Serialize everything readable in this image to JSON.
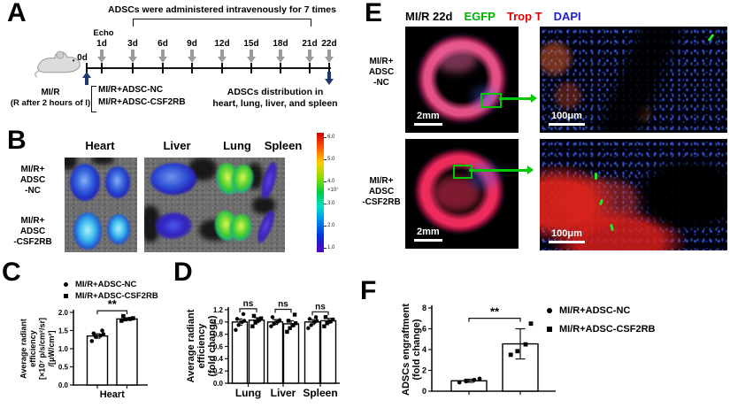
{
  "figure": {
    "panelA": {
      "letter": "A",
      "title": "ADSCs were administered intravenously for 7 times",
      "echo": "Echo",
      "day_zero": "0d",
      "days": [
        "1d",
        "3d",
        "6d",
        "9d",
        "12d",
        "15d",
        "18d",
        "21d",
        "22d"
      ],
      "mir_line1": "MI/R",
      "mir_line2": "(R after 2 hours of I)",
      "groups": [
        "MI/R+ADSC-NC",
        "MI/R+ADSC-CSF2RB"
      ],
      "outcome_line1": "ADSCs distribution in",
      "outcome_line2": "heart, lung, liver, and spleen"
    },
    "panelB": {
      "letter": "B",
      "organ_labels": [
        "Heart",
        "Liver",
        "Lung",
        "Spleen"
      ],
      "row1_label": [
        "MI/R+",
        "ADSC",
        "-NC"
      ],
      "row2_label": [
        "MI/R+",
        "ADSC",
        "-CSF2RB"
      ],
      "colorbar": {
        "ticks": [
          "6.0",
          "5.0",
          "4.0",
          "3.0",
          "2.0",
          "1.0"
        ],
        "unit": "×10⁷"
      }
    },
    "panelC": {
      "letter": "C"
    },
    "panelD": {
      "letter": "D"
    },
    "panelE": {
      "letter": "E",
      "title_parts": [
        {
          "text": "MI/R 22d",
          "color": "#000000"
        },
        {
          "text": "EGFP",
          "color": "#00b000"
        },
        {
          "text": "Trop T",
          "color": "#e80000"
        },
        {
          "text": "DAPI",
          "color": "#2020cc"
        }
      ],
      "row1_label": [
        "MI/R+",
        "ADSC",
        "-NC"
      ],
      "row2_label": [
        "MI/R+",
        "ADSC",
        "-CSF2RB"
      ],
      "scalebar_heart": "2mm",
      "scalebar_zoom": "100μm"
    },
    "panelF": {
      "letter": "F"
    },
    "legend": {
      "nc": "MI/R+ADSC-NC",
      "csf": "MI/R+ADSC-CSF2RB"
    }
  },
  "chart_data": [
    {
      "id": "chartC",
      "type": "bar",
      "panel": "C",
      "title": "",
      "categories": [
        "Heart"
      ],
      "ylim": [
        0,
        2
      ],
      "yticks": {
        "values": [
          0,
          0.5,
          1,
          1.5,
          2
        ],
        "labels": [
          "0.0",
          "0.5",
          "1.0",
          "1.5",
          "2.0"
        ]
      },
      "ylabel_lines": [
        "Average radiant",
        "efficiency",
        "[×10⁷ p/s/cm²/sr]",
        "/[μW/cm²]"
      ],
      "series": [
        {
          "name": "MI/R+ADSC-NC",
          "marker": "circle",
          "values": [
            1.35
          ],
          "errors": [
            0.06
          ],
          "points": [
            [
              1.21,
              1.33,
              1.36,
              1.4,
              1.42,
              1.5
            ]
          ]
        },
        {
          "name": "MI/R+ADSC-CSF2RB",
          "marker": "square",
          "values": [
            1.82
          ],
          "errors": [
            0.03
          ],
          "points": [
            [
              1.77,
              1.81,
              1.82,
              1.84,
              1.9
            ]
          ]
        }
      ],
      "significance": [
        {
          "group": 0,
          "label": "**"
        }
      ],
      "legend_position": "above-left"
    },
    {
      "id": "chartD",
      "type": "bar",
      "panel": "D",
      "title": "",
      "categories": [
        "Lung",
        "Liver",
        "Spleen"
      ],
      "ylim": [
        0,
        1.2
      ],
      "yticks": {
        "values": [
          0,
          0.2,
          0.4,
          0.6,
          0.8,
          1,
          1.2
        ],
        "labels": [
          "0.0",
          "0.2",
          "0.4",
          "0.6",
          "0.8",
          "1.0",
          "1.2"
        ]
      },
      "ylabel_lines": [
        "Average radiant",
        "efficiency",
        "(fold change)"
      ],
      "series": [
        {
          "name": "MI/R+ADSC-NC",
          "marker": "circle",
          "values": [
            1,
            1,
            1
          ],
          "errors": [
            0.05,
            0.04,
            0.04
          ],
          "points": [
            [
              0.87,
              0.95,
              1,
              1.02,
              1.05,
              1.13
            ],
            [
              0.93,
              0.97,
              1,
              1.03,
              1.08
            ],
            [
              0.9,
              0.95,
              1,
              1.02,
              1.05,
              1.08
            ]
          ]
        },
        {
          "name": "MI/R+ADSC-CSF2RB",
          "marker": "square",
          "values": [
            1.03,
            0.97,
            1.02
          ],
          "errors": [
            0.04,
            0.05,
            0.04
          ],
          "points": [
            [
              0.93,
              0.99,
              1.03,
              1.06,
              1.1
            ],
            [
              0.84,
              0.9,
              0.95,
              0.98,
              1.02,
              1.12
            ],
            [
              0.93,
              0.98,
              1.01,
              1.04,
              1.08
            ]
          ]
        }
      ],
      "significance": [
        {
          "group": 0,
          "label": "ns"
        },
        {
          "group": 1,
          "label": "ns"
        },
        {
          "group": 2,
          "label": "ns"
        }
      ],
      "legend_position": "none"
    },
    {
      "id": "chartF",
      "type": "bar",
      "panel": "F",
      "title": "",
      "categories": [
        ""
      ],
      "ylim": [
        0,
        8
      ],
      "yticks": {
        "values": [
          0,
          2,
          4,
          6,
          8
        ],
        "labels": [
          "0",
          "2",
          "4",
          "6",
          "8"
        ]
      },
      "ylabel_lines": [
        "ADSCs engraftment",
        "(fold change)"
      ],
      "series": [
        {
          "name": "MI/R+ADSC-NC",
          "marker": "circle",
          "values": [
            1
          ],
          "errors": [
            0.15
          ],
          "points": [
            [
              0.85,
              0.95,
              1.08,
              1.2
            ]
          ]
        },
        {
          "name": "MI/R+ADSC-CSF2RB",
          "marker": "square",
          "values": [
            4.55
          ],
          "errors": [
            1.45
          ],
          "points": [
            [
              3.5,
              3.85,
              4.5,
              6.5
            ]
          ]
        }
      ],
      "significance": [
        {
          "group": 0,
          "label": "**"
        }
      ],
      "legend_position": "right"
    }
  ]
}
